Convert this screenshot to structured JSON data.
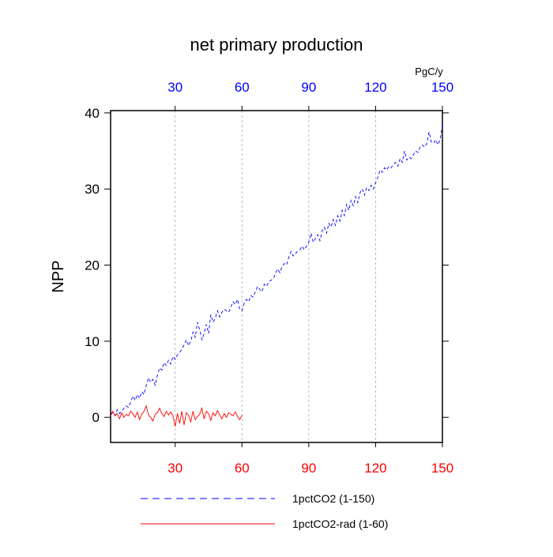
{
  "chart_data": {
    "type": "line",
    "title": "net primary production",
    "ylabel": "NPP",
    "x2_unit": "PgC/y",
    "xlim": [
      1,
      150
    ],
    "ylim": [
      -3.3,
      40.3
    ],
    "xticks": [
      30,
      60,
      90,
      120,
      150
    ],
    "x2ticks": [
      30,
      60,
      90,
      120,
      150
    ],
    "yticks": [
      0,
      10,
      20,
      30,
      40
    ],
    "xtick_color": "#ff0000",
    "x2tick_color": "#0000ff",
    "grid": true,
    "series": [
      {
        "name": "1pctCO2 (1-150)",
        "color": "#0000ff",
        "dash": true,
        "x": [
          1,
          2,
          3,
          4,
          5,
          6,
          7,
          8,
          9,
          10,
          11,
          12,
          13,
          14,
          15,
          16,
          17,
          18,
          19,
          20,
          21,
          22,
          23,
          24,
          25,
          26,
          27,
          28,
          29,
          30,
          31,
          32,
          33,
          34,
          35,
          36,
          37,
          38,
          39,
          40,
          41,
          42,
          43,
          44,
          45,
          46,
          47,
          48,
          49,
          50,
          51,
          52,
          53,
          54,
          55,
          56,
          57,
          58,
          59,
          60,
          61,
          62,
          63,
          64,
          65,
          66,
          67,
          68,
          69,
          70,
          71,
          72,
          73,
          74,
          75,
          76,
          77,
          78,
          79,
          80,
          81,
          82,
          83,
          84,
          85,
          86,
          87,
          88,
          89,
          90,
          91,
          92,
          93,
          94,
          95,
          96,
          97,
          98,
          99,
          100,
          101,
          102,
          103,
          104,
          105,
          106,
          107,
          108,
          109,
          110,
          111,
          112,
          113,
          114,
          115,
          116,
          117,
          118,
          119,
          120,
          121,
          122,
          123,
          124,
          125,
          126,
          127,
          128,
          129,
          130,
          131,
          132,
          133,
          134,
          135,
          136,
          137,
          138,
          139,
          140,
          141,
          142,
          143,
          144,
          145,
          146,
          147,
          148,
          149,
          150
        ],
        "values": [
          0.3,
          0.6,
          0.2,
          1.0,
          0.5,
          0.8,
          1.2,
          1.5,
          1.3,
          2.0,
          2.8,
          2.2,
          3.0,
          2.5,
          3.4,
          3.0,
          4.2,
          5.2,
          4.6,
          5.0,
          4.2,
          5.5,
          6.5,
          6.2,
          7.2,
          6.8,
          7.5,
          7.0,
          8.0,
          7.6,
          8.2,
          8.5,
          9.0,
          9.5,
          10.2,
          9.4,
          10.0,
          11.2,
          10.5,
          12.5,
          11.5,
          10.2,
          11.0,
          12.2,
          11.0,
          13.5,
          12.5,
          13.0,
          14.0,
          13.2,
          13.8,
          14.2,
          14.0,
          13.8,
          14.5,
          15.2,
          14.8,
          15.5,
          14.2,
          14.0,
          15.0,
          15.5,
          15.2,
          16.0,
          15.8,
          16.5,
          17.2,
          16.8,
          16.5,
          17.5,
          17.2,
          17.8,
          18.0,
          18.2,
          18.8,
          19.5,
          19.0,
          19.8,
          20.2,
          20.0,
          21.0,
          21.8,
          21.2,
          21.5,
          21.8,
          22.0,
          22.5,
          22.0,
          22.5,
          23.0,
          24.2,
          23.0,
          23.5,
          24.0,
          23.2,
          24.5,
          25.0,
          24.2,
          25.5,
          25.0,
          26.0,
          25.2,
          26.5,
          25.8,
          27.2,
          26.5,
          28.0,
          27.2,
          28.5,
          27.8,
          29.0,
          28.2,
          29.5,
          30.0,
          29.2,
          30.2,
          29.8,
          30.5,
          30.0,
          30.8,
          31.5,
          32.5,
          32.2,
          32.8,
          32.5,
          33.0,
          32.8,
          33.2,
          33.5,
          33.0,
          34.0,
          33.5,
          35.0,
          33.8,
          34.2,
          34.0,
          34.5,
          35.0,
          34.8,
          35.5,
          35.8,
          35.5,
          36.0,
          37.5,
          36.2,
          36.0,
          36.5,
          35.8,
          36.5,
          38.5
        ]
      },
      {
        "name": "1pctCO2-rad (1-60)",
        "color": "#ff0000",
        "dash": false,
        "x": [
          1,
          2,
          3,
          4,
          5,
          6,
          7,
          8,
          9,
          10,
          11,
          12,
          13,
          14,
          15,
          16,
          17,
          18,
          19,
          20,
          21,
          22,
          23,
          24,
          25,
          26,
          27,
          28,
          29,
          30,
          31,
          32,
          33,
          34,
          35,
          36,
          37,
          38,
          39,
          40,
          41,
          42,
          43,
          44,
          45,
          46,
          47,
          48,
          49,
          50,
          51,
          52,
          53,
          54,
          55,
          56,
          57,
          58,
          59,
          60
        ],
        "values": [
          0.3,
          0.8,
          0.2,
          0.5,
          -0.2,
          0.6,
          0.0,
          0.4,
          0.2,
          0.8,
          0.5,
          0.0,
          0.7,
          -0.3,
          0.4,
          0.8,
          1.5,
          0.3,
          0.0,
          -0.5,
          0.4,
          0.6,
          1.2,
          0.5,
          0.1,
          0.8,
          0.3,
          0.7,
          0.2,
          -1.2,
          0.5,
          -0.8,
          0.8,
          -1.0,
          0.6,
          0.3,
          -0.6,
          0.8,
          -0.3,
          0.1,
          0.4,
          1.2,
          -0.2,
          0.8,
          0.5,
          -0.4,
          0.6,
          0.2,
          0.9,
          0.3,
          -0.2,
          0.5,
          0.0,
          0.6,
          0.4,
          0.2,
          0.7,
          0.1,
          -0.3,
          0.3
        ]
      }
    ]
  }
}
